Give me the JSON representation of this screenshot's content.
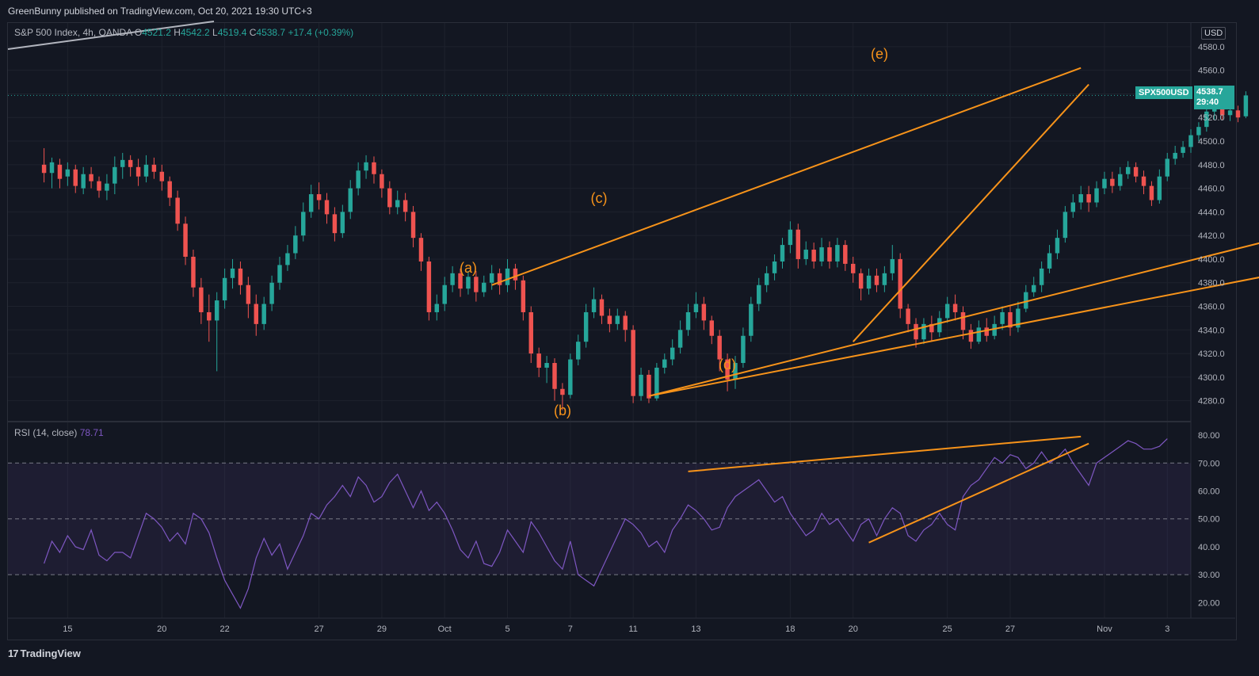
{
  "header": {
    "published": "GreenBunny published on TradingView.com, Oct 20, 2021 19:30 UTC+3"
  },
  "legend": {
    "symbol": "S&P 500 Index, 4h, OANDA",
    "open_label": "O",
    "open": "4521.2",
    "high_label": "H",
    "high": "4542.2",
    "low_label": "L",
    "low": "4519.4",
    "close_label": "C",
    "close": "4538.7",
    "change": "+17.4 (+0.39%)"
  },
  "rsi_legend": {
    "label": "RSI (14, close)",
    "value": "78.71"
  },
  "currency": "USD",
  "price_tag": {
    "symbol": "SPX500USD",
    "price": "4538.7",
    "countdown": "29:40"
  },
  "footer": {
    "logo": "17",
    "brand": "TradingView"
  },
  "colors": {
    "up": "#26a69a",
    "down": "#ef5350",
    "rsi": "#7e57c2",
    "annotation": "#f7931a",
    "background": "#131722",
    "grid": "#1e222d"
  },
  "chart_data": [
    {
      "type": "candlestick",
      "title": "S&P 500 Index, 4h, OANDA",
      "ylim": [
        4265,
        4590
      ],
      "y_ticks": [
        4280,
        4300,
        4320,
        4340,
        4360,
        4380,
        4400,
        4420,
        4440,
        4460,
        4480,
        4500,
        4520,
        4540,
        4560,
        4580
      ],
      "x_ticks": [
        "15",
        "20",
        "22",
        "27",
        "29",
        "Oct",
        "5",
        "7",
        "11",
        "13",
        "18",
        "20",
        "25",
        "27",
        "Nov",
        "3"
      ],
      "x_tick_positions": [
        3,
        15,
        23,
        35,
        43,
        51,
        59,
        67,
        75,
        83,
        95,
        103,
        115,
        123,
        135,
        143
      ],
      "x_range": [
        -4.6,
        146
      ],
      "last_price": 4538.7,
      "candles": [
        [
          4480,
          4473,
          4494,
          4465
        ],
        [
          4473,
          4482,
          4486,
          4460
        ],
        [
          4480,
          4468,
          4485,
          4460
        ],
        [
          4470,
          4476,
          4482,
          4462
        ],
        [
          4476,
          4462,
          4480,
          4456
        ],
        [
          4460,
          4472,
          4478,
          4455
        ],
        [
          4472,
          4466,
          4478,
          4460
        ],
        [
          4466,
          4458,
          4470,
          4452
        ],
        [
          4458,
          4464,
          4472,
          4450
        ],
        [
          4464,
          4478,
          4487,
          4455
        ],
        [
          4478,
          4484,
          4490,
          4468
        ],
        [
          4484,
          4478,
          4488,
          4470
        ],
        [
          4478,
          4470,
          4485,
          4462
        ],
        [
          4470,
          4480,
          4488,
          4465
        ],
        [
          4480,
          4474,
          4486,
          4468
        ],
        [
          4474,
          4466,
          4480,
          4458
        ],
        [
          4466,
          4452,
          4470,
          4445
        ],
        [
          4452,
          4430,
          4458,
          4424
        ],
        [
          4430,
          4402,
          4436,
          4395
        ],
        [
          4402,
          4376,
          4408,
          4368
        ],
        [
          4376,
          4355,
          4384,
          4345
        ],
        [
          4355,
          4348,
          4370,
          4330
        ],
        [
          4348,
          4365,
          4372,
          4305
        ],
        [
          4365,
          4384,
          4392,
          4358
        ],
        [
          4384,
          4392,
          4400,
          4375
        ],
        [
          4392,
          4378,
          4398,
          4370
        ],
        [
          4378,
          4362,
          4385,
          4350
        ],
        [
          4362,
          4345,
          4370,
          4335
        ],
        [
          4345,
          4362,
          4368,
          4340
        ],
        [
          4362,
          4380,
          4386,
          4356
        ],
        [
          4380,
          4395,
          4402,
          4374
        ],
        [
          4395,
          4405,
          4412,
          4390
        ],
        [
          4405,
          4420,
          4428,
          4400
        ],
        [
          4420,
          4440,
          4448,
          4415
        ],
        [
          4440,
          4455,
          4463,
          4435
        ],
        [
          4455,
          4450,
          4465,
          4442
        ],
        [
          4450,
          4438,
          4456,
          4430
        ],
        [
          4438,
          4422,
          4444,
          4415
        ],
        [
          4422,
          4440,
          4446,
          4418
        ],
        [
          4440,
          4460,
          4467,
          4434
        ],
        [
          4460,
          4475,
          4482,
          4454
        ],
        [
          4475,
          4482,
          4488,
          4468
        ],
        [
          4482,
          4472,
          4487,
          4464
        ],
        [
          4472,
          4460,
          4476,
          4452
        ],
        [
          4460,
          4444,
          4466,
          4438
        ],
        [
          4444,
          4450,
          4458,
          4438
        ],
        [
          4450,
          4440,
          4456,
          4432
        ],
        [
          4440,
          4418,
          4445,
          4410
        ],
        [
          4418,
          4398,
          4422,
          4390
        ],
        [
          4398,
          4355,
          4402,
          4348
        ],
        [
          4355,
          4362,
          4370,
          4348
        ],
        [
          4362,
          4378,
          4385,
          4356
        ],
        [
          4378,
          4388,
          4394,
          4372
        ],
        [
          4388,
          4375,
          4392,
          4368
        ],
        [
          4375,
          4385,
          4390,
          4370
        ],
        [
          4385,
          4372,
          4390,
          4364
        ],
        [
          4372,
          4380,
          4386,
          4368
        ],
        [
          4380,
          4388,
          4395,
          4374
        ],
        [
          4388,
          4378,
          4392,
          4370
        ],
        [
          4378,
          4392,
          4400,
          4372
        ],
        [
          4392,
          4382,
          4396,
          4374
        ],
        [
          4382,
          4355,
          4386,
          4348
        ],
        [
          4355,
          4320,
          4360,
          4312
        ],
        [
          4320,
          4308,
          4325,
          4300
        ],
        [
          4308,
          4312,
          4318,
          4295
        ],
        [
          4312,
          4290,
          4316,
          4280
        ],
        [
          4290,
          4285,
          4295,
          4272
        ],
        [
          4285,
          4315,
          4320,
          4282
        ],
        [
          4315,
          4330,
          4336,
          4310
        ],
        [
          4330,
          4355,
          4362,
          4325
        ],
        [
          4355,
          4366,
          4376,
          4350
        ],
        [
          4366,
          4352,
          4370,
          4345
        ],
        [
          4352,
          4345,
          4358,
          4338
        ],
        [
          4345,
          4352,
          4358,
          4340
        ],
        [
          4352,
          4340,
          4356,
          4330
        ],
        [
          4340,
          4284,
          4344,
          4278
        ],
        [
          4284,
          4302,
          4308,
          4280
        ],
        [
          4302,
          4282,
          4306,
          4278
        ],
        [
          4282,
          4308,
          4312,
          4280
        ],
        [
          4308,
          4315,
          4320,
          4303
        ],
        [
          4315,
          4325,
          4332,
          4310
        ],
        [
          4325,
          4340,
          4348,
          4320
        ],
        [
          4340,
          4355,
          4362,
          4335
        ],
        [
          4355,
          4362,
          4372,
          4350
        ],
        [
          4362,
          4348,
          4368,
          4340
        ],
        [
          4348,
          4335,
          4352,
          4328
        ],
        [
          4335,
          4315,
          4340,
          4305
        ],
        [
          4315,
          4298,
          4320,
          4288
        ],
        [
          4298,
          4312,
          4318,
          4290
        ],
        [
          4312,
          4335,
          4342,
          4308
        ],
        [
          4335,
          4362,
          4368,
          4330
        ],
        [
          4362,
          4378,
          4384,
          4356
        ],
        [
          4378,
          4388,
          4394,
          4372
        ],
        [
          4388,
          4398,
          4404,
          4382
        ],
        [
          4398,
          4412,
          4418,
          4392
        ],
        [
          4412,
          4425,
          4432,
          4405
        ],
        [
          4425,
          4400,
          4430,
          4392
        ],
        [
          4400,
          4408,
          4415,
          4395
        ],
        [
          4408,
          4398,
          4414,
          4392
        ],
        [
          4398,
          4410,
          4418,
          4394
        ],
        [
          4410,
          4398,
          4415,
          4392
        ],
        [
          4398,
          4412,
          4418,
          4393
        ],
        [
          4412,
          4396,
          4416,
          4390
        ],
        [
          4396,
          4388,
          4402,
          4380
        ],
        [
          4388,
          4375,
          4392,
          4365
        ],
        [
          4375,
          4386,
          4392,
          4370
        ],
        [
          4386,
          4378,
          4392,
          4372
        ],
        [
          4378,
          4388,
          4394,
          4372
        ],
        [
          4388,
          4400,
          4412,
          4382
        ],
        [
          4400,
          4358,
          4405,
          4350
        ],
        [
          4358,
          4345,
          4362,
          4338
        ],
        [
          4345,
          4332,
          4350,
          4325
        ],
        [
          4332,
          4345,
          4350,
          4328
        ],
        [
          4345,
          4338,
          4352,
          4330
        ],
        [
          4338,
          4350,
          4356,
          4334
        ],
        [
          4350,
          4362,
          4368,
          4346
        ],
        [
          4362,
          4355,
          4370,
          4348
        ],
        [
          4355,
          4340,
          4360,
          4332
        ],
        [
          4340,
          4330,
          4345,
          4324
        ],
        [
          4330,
          4342,
          4348,
          4328
        ],
        [
          4342,
          4335,
          4350,
          4330
        ],
        [
          4335,
          4345,
          4352,
          4332
        ],
        [
          4345,
          4355,
          4360,
          4340
        ],
        [
          4355,
          4342,
          4360,
          4335
        ],
        [
          4342,
          4358,
          4364,
          4338
        ],
        [
          4358,
          4372,
          4378,
          4355
        ],
        [
          4372,
          4378,
          4385,
          4368
        ],
        [
          4378,
          4392,
          4398,
          4372
        ],
        [
          4392,
          4405,
          4412,
          4388
        ],
        [
          4405,
          4418,
          4425,
          4400
        ],
        [
          4418,
          4440,
          4445,
          4414
        ],
        [
          4440,
          4448,
          4455,
          4435
        ],
        [
          4448,
          4455,
          4462,
          4442
        ],
        [
          4455,
          4448,
          4462,
          4440
        ],
        [
          4448,
          4460,
          4466,
          4444
        ],
        [
          4460,
          4468,
          4474,
          4455
        ],
        [
          4468,
          4462,
          4474,
          4456
        ],
        [
          4462,
          4472,
          4478,
          4458
        ],
        [
          4472,
          4478,
          4483,
          4468
        ],
        [
          4478,
          4470,
          4482,
          4465
        ],
        [
          4470,
          4462,
          4475,
          4455
        ],
        [
          4462,
          4450,
          4466,
          4445
        ],
        [
          4450,
          4470,
          4476,
          4447
        ],
        [
          4470,
          4485,
          4490,
          4466
        ],
        [
          4485,
          4490,
          4496,
          4480
        ],
        [
          4490,
          4495,
          4500,
          4486
        ],
        [
          4495,
          4505,
          4510,
          4490
        ],
        [
          4505,
          4512,
          4516,
          4500
        ],
        [
          4512,
          4525,
          4530,
          4508
        ],
        [
          4525,
          4528,
          4534,
          4518
        ],
        [
          4528,
          4522,
          4532,
          4518
        ],
        [
          4522,
          4526,
          4531,
          4517
        ],
        [
          4526,
          4520,
          4530,
          4516
        ],
        [
          4521,
          4538.7,
          4542.2,
          4519.4
        ]
      ]
    },
    {
      "type": "line",
      "title": "RSI (14, close)",
      "ylim": [
        15,
        84
      ],
      "y_ticks": [
        20,
        30,
        40,
        50,
        60,
        70,
        80
      ],
      "band": [
        30,
        70
      ],
      "midline": 50,
      "values": [
        34,
        42,
        38,
        44,
        40,
        39,
        46,
        37,
        35,
        38,
        38,
        36,
        44,
        52,
        50,
        47,
        42,
        45,
        41,
        52,
        50,
        45,
        36,
        28,
        23,
        18,
        25,
        36,
        43,
        37,
        41,
        32,
        38,
        44,
        52,
        50,
        55,
        58,
        62,
        58,
        65,
        62,
        56,
        58,
        63,
        66,
        60,
        54,
        60,
        53,
        56,
        52,
        46,
        39,
        36,
        42,
        34,
        33,
        38,
        46,
        42,
        38,
        49,
        45,
        40,
        35,
        32,
        42,
        30,
        28,
        26,
        32,
        38,
        44,
        50,
        48,
        45,
        40,
        42,
        38,
        46,
        50,
        55,
        53,
        50,
        46,
        47,
        54,
        58,
        60,
        62,
        64,
        60,
        56,
        58,
        52,
        48,
        44,
        46,
        52,
        48,
        50,
        46,
        42,
        48,
        50,
        44,
        50,
        54,
        52,
        44,
        42,
        46,
        48,
        52,
        48,
        46,
        58,
        62,
        64,
        68,
        72,
        70,
        73,
        72,
        68,
        70,
        74,
        70,
        72,
        75,
        70,
        66,
        62,
        70,
        72,
        74,
        76,
        78,
        77,
        75,
        75,
        76,
        78.71
      ],
      "annotation_note": "upper and lower converging trendlines drawn in orange"
    }
  ],
  "annotations": {
    "labels": [
      "(a)",
      "(b)",
      "(c)",
      "(d)",
      "(e)"
    ],
    "lines": [
      {
        "name": "upper-trendline",
        "from": [
          4378,
          57
        ],
        "to": [
          4562,
          132
        ]
      },
      {
        "name": "lower-trendline",
        "from": [
          4284,
          77
        ],
        "to": [
          4414,
          155
        ]
      },
      {
        "name": "inner-trendline",
        "from": [
          4330,
          103
        ],
        "to": [
          4548,
          133
        ]
      }
    ],
    "rsi_lines": [
      {
        "name": "rsi-upper-line",
        "from": [
          67,
          82
        ],
        "to": [
          79.5,
          132
        ]
      },
      {
        "name": "rsi-lower-line",
        "from": [
          41.5,
          105
        ],
        "to": [
          77,
          133
        ]
      }
    ]
  }
}
